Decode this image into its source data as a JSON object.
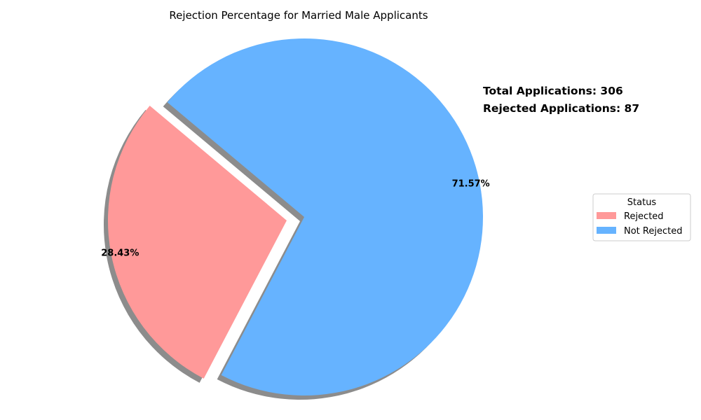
{
  "chart_data": {
    "type": "pie",
    "title": "Rejection Percentage for Married Male Applicants",
    "slices": [
      {
        "label": "Rejected",
        "value": 87,
        "percent_label": "28.43%",
        "color": "#ff9999",
        "exploded": true
      },
      {
        "label": "Not Rejected",
        "value": 219,
        "percent_label": "71.57%",
        "color": "#66b3ff",
        "exploded": false
      }
    ],
    "shadow": true,
    "annotations": [
      "Total Applications: 306",
      "Rejected Applications: 87"
    ],
    "legend": {
      "title": "Status",
      "placement": "center-right",
      "entries": [
        "Rejected",
        "Not Rejected"
      ]
    }
  }
}
